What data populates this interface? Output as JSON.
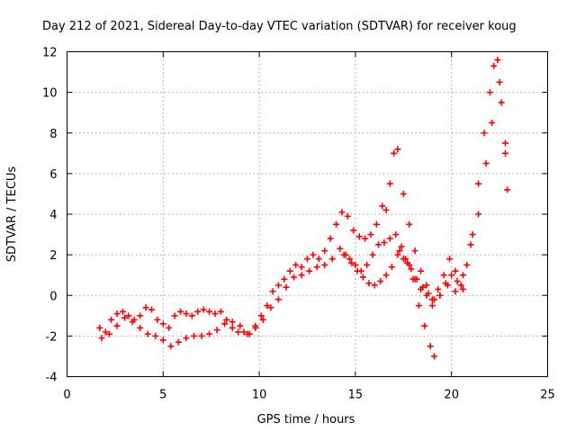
{
  "chart_data": {
    "type": "scatter",
    "title": "Day 212 of 2021, Sidereal Day-to-day VTEC variation (SDTVAR) for receiver koug",
    "xlabel": "GPS time / hours",
    "ylabel": "SDTVAR / TECUs",
    "xlim": [
      0,
      25
    ],
    "ylim": [
      -4,
      12
    ],
    "xticks": [
      0,
      5,
      10,
      15,
      20,
      25
    ],
    "yticks": [
      -4,
      -2,
      0,
      2,
      4,
      6,
      8,
      10,
      12
    ],
    "grid": true,
    "marker": "plus",
    "color": "#ff0000",
    "series": [
      {
        "name": "SDTVAR",
        "x": [
          1.7,
          2.0,
          2.3,
          2.6,
          2.9,
          3.2,
          3.5,
          3.8,
          4.1,
          4.4,
          4.7,
          5.0,
          5.3,
          5.6,
          5.9,
          6.2,
          6.5,
          6.8,
          7.1,
          7.4,
          7.7,
          8.0,
          8.3,
          8.6,
          8.9,
          9.2,
          9.5,
          9.8,
          10.1,
          10.4,
          10.7,
          11.0,
          11.3,
          11.6,
          11.9,
          12.2,
          12.5,
          12.8,
          13.1,
          13.4,
          13.7,
          14.0,
          14.3,
          14.6,
          14.9,
          15.2,
          15.5,
          15.8,
          16.1,
          16.4,
          16.6,
          16.8,
          17.0,
          17.2,
          17.5,
          17.8,
          18.1,
          18.4,
          18.7,
          19.0,
          19.3,
          19.6,
          19.9,
          20.2,
          20.5,
          20.8,
          21.1,
          21.4,
          21.7,
          22.0,
          22.2,
          22.4,
          22.6,
          22.8,
          22.9,
          1.8,
          2.2,
          2.6,
          3.0,
          3.4,
          3.8,
          4.2,
          4.6,
          5.0,
          5.4,
          5.8,
          6.2,
          6.6,
          7.0,
          7.4,
          7.8,
          8.2,
          8.6,
          9.0,
          9.4,
          9.8,
          10.2,
          10.6,
          11.0,
          11.4,
          11.8,
          12.2,
          12.6,
          13.0,
          13.4,
          13.8,
          14.2,
          14.5,
          14.8,
          15.1,
          15.4,
          15.7,
          16.0,
          16.3,
          16.6,
          16.9,
          17.2,
          17.5,
          17.8,
          18.1,
          18.4,
          18.7,
          19.0,
          19.4,
          19.8,
          20.2,
          20.6,
          21.0,
          21.4,
          21.8,
          22.1,
          22.5,
          22.8,
          14.4,
          14.7,
          15.0,
          15.3,
          15.6,
          15.9,
          16.2,
          16.5,
          16.8,
          17.1,
          17.4,
          17.7,
          18.0,
          18.3,
          18.6,
          18.9,
          19.1,
          17.3,
          17.6,
          17.9,
          18.2,
          18.5,
          18.8,
          19.1,
          19.4,
          19.7,
          20.0,
          20.3,
          20.6
        ],
        "y": [
          -1.6,
          -1.8,
          -1.2,
          -0.9,
          -0.8,
          -1.0,
          -1.2,
          -1.0,
          -0.6,
          -0.7,
          -1.2,
          -1.4,
          -1.6,
          -1.0,
          -0.8,
          -0.9,
          -1.0,
          -0.8,
          -0.7,
          -0.8,
          -0.9,
          -0.8,
          -1.2,
          -1.6,
          -1.8,
          -1.8,
          -1.9,
          -1.6,
          -1.0,
          -0.5,
          0.2,
          0.5,
          0.8,
          1.2,
          1.5,
          1.4,
          1.8,
          2.0,
          1.8,
          2.2,
          2.8,
          3.5,
          4.1,
          3.9,
          3.2,
          2.9,
          2.8,
          3.0,
          3.5,
          4.4,
          4.2,
          5.5,
          7.0,
          7.2,
          5.0,
          3.5,
          2.2,
          1.2,
          0.5,
          -0.2,
          0.3,
          1.0,
          1.8,
          1.2,
          0.5,
          1.5,
          3.0,
          5.5,
          8.0,
          10.0,
          11.3,
          11.6,
          9.5,
          7.5,
          5.2,
          -2.1,
          -1.9,
          -1.5,
          -1.1,
          -1.3,
          -1.6,
          -1.9,
          -2.0,
          -2.2,
          -2.5,
          -2.3,
          -2.1,
          -2.0,
          -2.0,
          -1.9,
          -1.7,
          -1.4,
          -1.3,
          -1.5,
          -1.9,
          -1.5,
          -1.2,
          -0.6,
          -0.2,
          0.4,
          0.9,
          1.0,
          1.2,
          1.4,
          1.5,
          1.8,
          2.3,
          2.0,
          1.6,
          1.2,
          0.9,
          0.6,
          0.5,
          0.7,
          1.0,
          1.4,
          2.0,
          1.8,
          1.5,
          0.8,
          0.3,
          0.0,
          -0.5,
          0.0,
          0.5,
          0.2,
          1.0,
          2.5,
          4.0,
          6.5,
          8.5,
          10.5,
          7.0,
          2.0,
          1.8,
          1.5,
          1.2,
          1.5,
          2.0,
          2.5,
          2.6,
          2.8,
          3.0,
          2.4,
          1.6,
          0.8,
          -0.5,
          -1.5,
          -2.5,
          -3.0,
          2.2,
          1.8,
          1.3,
          0.8,
          0.4,
          0.1,
          -0.2,
          0.0,
          0.6,
          1.0,
          0.7,
          0.3
        ]
      }
    ]
  }
}
